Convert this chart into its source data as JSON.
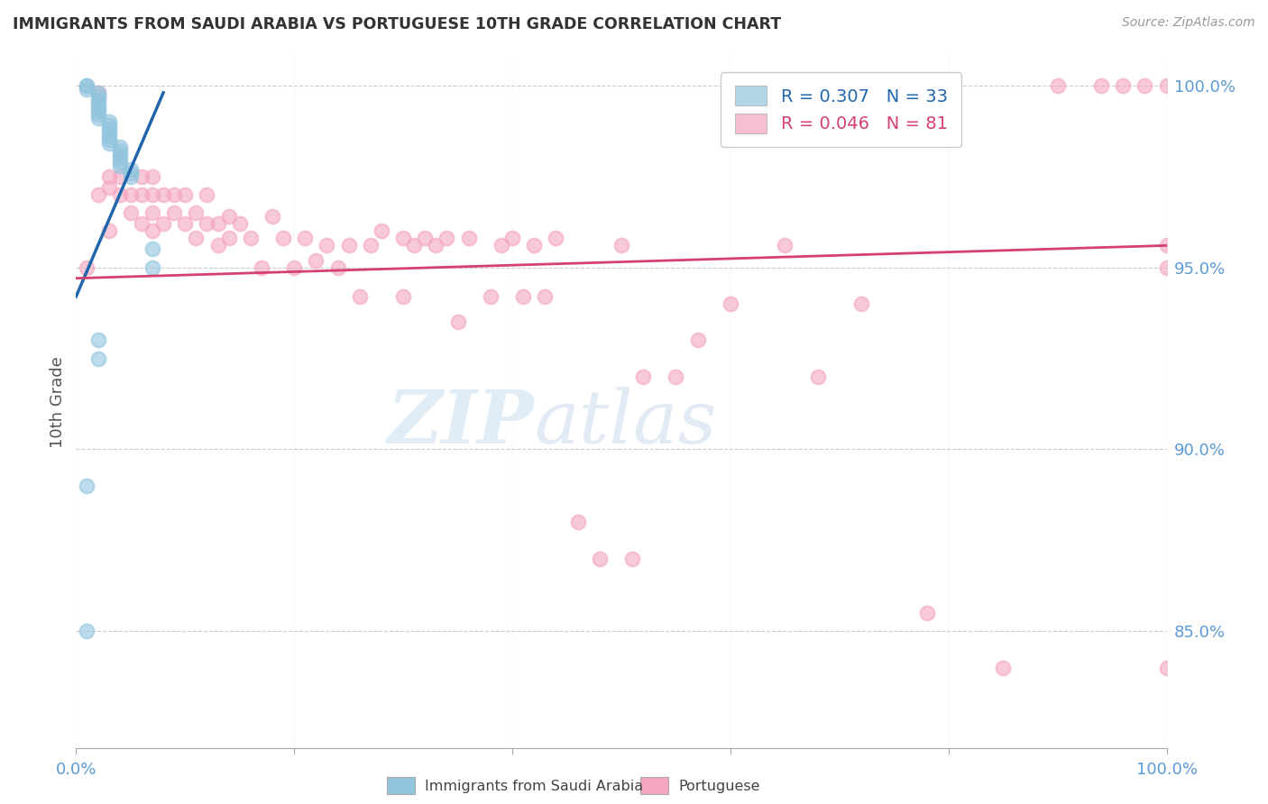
{
  "title": "IMMIGRANTS FROM SAUDI ARABIA VS PORTUGUESE 10TH GRADE CORRELATION CHART",
  "source": "Source: ZipAtlas.com",
  "ylabel": "10th Grade",
  "xlim": [
    0.0,
    1.0
  ],
  "ylim": [
    0.818,
    1.008
  ],
  "yticks": [
    0.85,
    0.9,
    0.95,
    1.0
  ],
  "ytick_labels": [
    "85.0%",
    "90.0%",
    "95.0%",
    "100.0%"
  ],
  "xticks": [
    0.0,
    0.2,
    0.4,
    0.6,
    0.8,
    1.0
  ],
  "xtick_labels": [
    "0.0%",
    "",
    "",
    "",
    "",
    "100.0%"
  ],
  "legend_r1": "R = 0.307",
  "legend_n1": "N = 33",
  "legend_r2": "R = 0.046",
  "legend_n2": "N = 81",
  "blue_color": "#92c5de",
  "pink_color": "#f4a6c0",
  "blue_line_color": "#2166ac",
  "pink_line_color": "#d6406e",
  "axis_label_color": "#5b9bd5",
  "grid_color": "#cccccc",
  "title_color": "#333333",
  "blue_scatter_x": [
    0.01,
    0.01,
    0.01,
    0.02,
    0.02,
    0.02,
    0.02,
    0.02,
    0.02,
    0.02,
    0.02,
    0.03,
    0.03,
    0.03,
    0.03,
    0.03,
    0.03,
    0.03,
    0.04,
    0.04,
    0.04,
    0.04,
    0.04,
    0.04,
    0.05,
    0.05,
    0.05,
    0.07,
    0.07,
    0.02,
    0.02,
    0.01,
    0.01
  ],
  "blue_scatter_y": [
    1.0,
    1.0,
    0.999,
    0.998,
    0.997,
    0.996,
    0.995,
    0.994,
    0.993,
    0.992,
    0.991,
    0.99,
    0.989,
    0.988,
    0.987,
    0.986,
    0.985,
    0.984,
    0.983,
    0.982,
    0.981,
    0.98,
    0.979,
    0.978,
    0.977,
    0.976,
    0.975,
    0.955,
    0.95,
    0.93,
    0.925,
    0.89,
    0.85
  ],
  "pink_scatter_x": [
    0.01,
    0.02,
    0.02,
    0.03,
    0.03,
    0.03,
    0.04,
    0.04,
    0.05,
    0.05,
    0.06,
    0.06,
    0.06,
    0.07,
    0.07,
    0.07,
    0.07,
    0.08,
    0.08,
    0.09,
    0.09,
    0.1,
    0.1,
    0.11,
    0.11,
    0.12,
    0.12,
    0.13,
    0.13,
    0.14,
    0.14,
    0.15,
    0.16,
    0.17,
    0.18,
    0.19,
    0.2,
    0.21,
    0.22,
    0.23,
    0.24,
    0.25,
    0.26,
    0.27,
    0.28,
    0.3,
    0.3,
    0.31,
    0.32,
    0.33,
    0.34,
    0.35,
    0.36,
    0.38,
    0.39,
    0.4,
    0.41,
    0.42,
    0.43,
    0.44,
    0.46,
    0.48,
    0.5,
    0.51,
    0.52,
    0.55,
    0.57,
    0.6,
    0.65,
    0.68,
    0.72,
    0.78,
    0.85,
    0.9,
    0.94,
    0.96,
    0.98,
    1.0,
    1.0,
    1.0,
    1.0
  ],
  "pink_scatter_y": [
    0.95,
    0.998,
    0.97,
    0.975,
    0.972,
    0.96,
    0.975,
    0.97,
    0.97,
    0.965,
    0.975,
    0.97,
    0.962,
    0.975,
    0.97,
    0.965,
    0.96,
    0.97,
    0.962,
    0.97,
    0.965,
    0.97,
    0.962,
    0.965,
    0.958,
    0.962,
    0.97,
    0.962,
    0.956,
    0.964,
    0.958,
    0.962,
    0.958,
    0.95,
    0.964,
    0.958,
    0.95,
    0.958,
    0.952,
    0.956,
    0.95,
    0.956,
    0.942,
    0.956,
    0.96,
    0.958,
    0.942,
    0.956,
    0.958,
    0.956,
    0.958,
    0.935,
    0.958,
    0.942,
    0.956,
    0.958,
    0.942,
    0.956,
    0.942,
    0.958,
    0.88,
    0.87,
    0.956,
    0.87,
    0.92,
    0.92,
    0.93,
    0.94,
    0.956,
    0.92,
    0.94,
    0.855,
    0.84,
    1.0,
    1.0,
    1.0,
    1.0,
    1.0,
    0.956,
    0.95,
    0.84
  ],
  "blue_trend_x": [
    0.0,
    0.08
  ],
  "blue_trend_y_start": 0.942,
  "blue_trend_y_end": 0.998,
  "pink_trend_x": [
    0.0,
    1.0
  ],
  "pink_trend_y_start": 0.947,
  "pink_trend_y_end": 0.956
}
